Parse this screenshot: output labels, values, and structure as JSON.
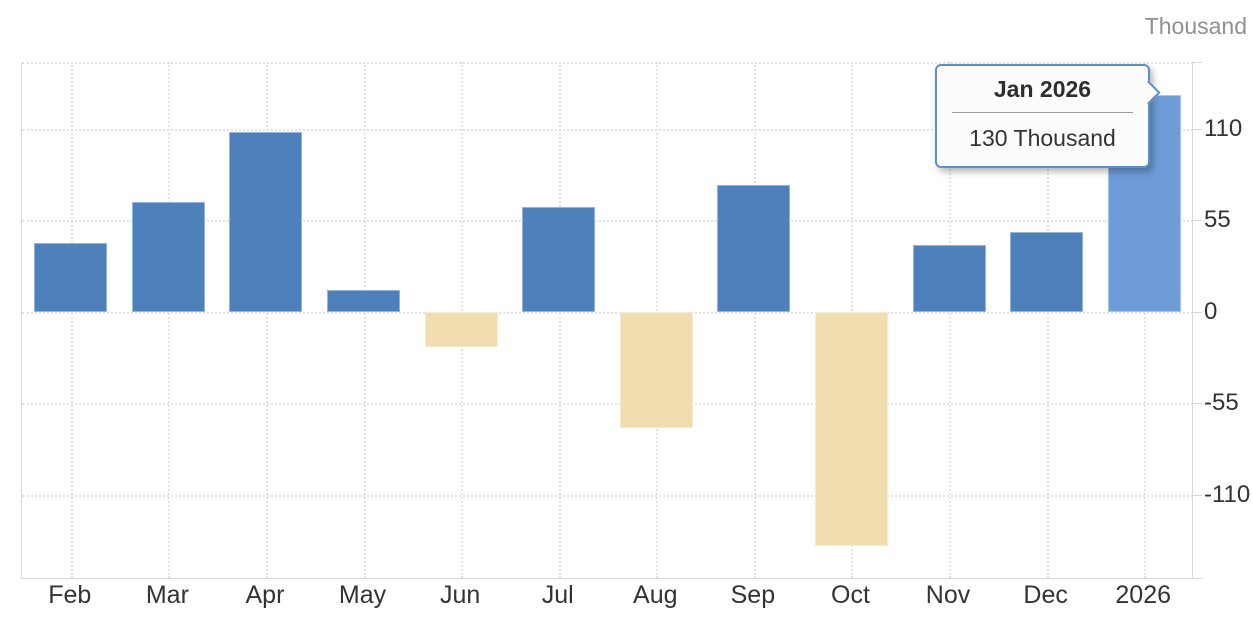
{
  "chart_data": {
    "type": "bar",
    "categories": [
      "Feb",
      "Mar",
      "Apr",
      "May",
      "Jun",
      "Jul",
      "Aug",
      "Sep",
      "Oct",
      "Nov",
      "Dec",
      "2026"
    ],
    "values": [
      41,
      66,
      108,
      13,
      -21,
      63,
      -70,
      76,
      -141,
      40,
      48,
      130
    ],
    "highlighted_index": 11,
    "yticks": [
      110,
      55,
      0,
      -55,
      -110
    ],
    "ylim": [
      -160,
      150
    ],
    "ylabel": "Thousand",
    "grid": true,
    "legend": "none",
    "tooltip": {
      "title": "Jan 2026",
      "value_text": "130 Thousand"
    }
  },
  "colors": {
    "positive_bar": "#4e81bc",
    "negative_bar": "#f2ddb0",
    "highlight_bar": "#6d9cd8",
    "grid": "#e2e2e2",
    "axis": "#d9d9d9",
    "axis_text": "#333333",
    "unit_text": "#909090",
    "tooltip_border": "#5f8fc7",
    "tooltip_bg": "#fcfcfc"
  }
}
